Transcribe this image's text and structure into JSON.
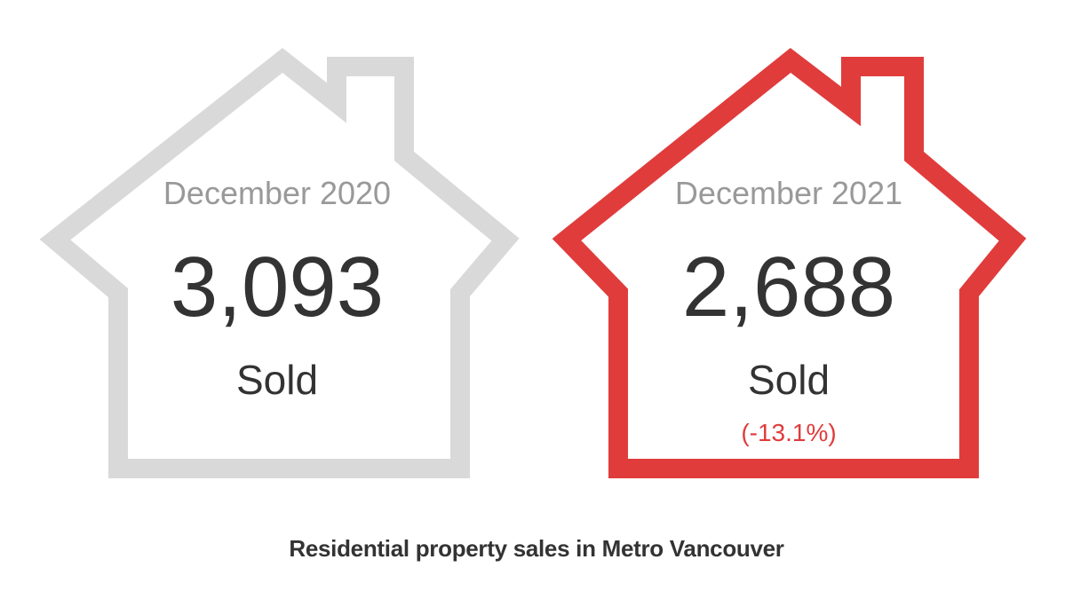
{
  "cards": [
    {
      "period": "December 2020",
      "count": "3,093",
      "count_label": "Sold",
      "outline_color": "#d9d9d9"
    },
    {
      "period": "December 2021",
      "count": "2,688",
      "count_label": "Sold",
      "change": "(-13.1%)",
      "outline_color": "#e03c3c",
      "change_color": "#e03c3c"
    }
  ],
  "caption": "Residential property sales in Metro Vancouver"
}
